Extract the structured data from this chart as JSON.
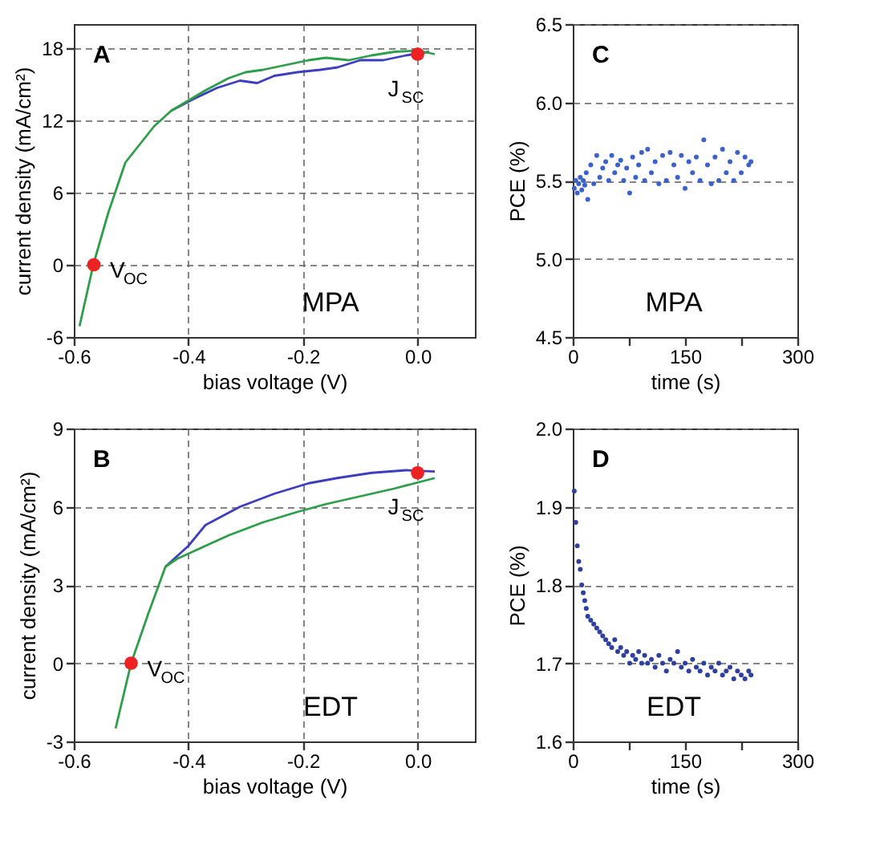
{
  "chart_data": [
    {
      "type": "line",
      "xlabel": "bias voltage (V)",
      "ylabel": "current density (mA/cm²)",
      "xlim": [
        -0.6,
        0.1
      ],
      "ylim": [
        -6,
        20
      ],
      "xticks": [
        -0.6,
        -0.4,
        -0.2,
        {
          "value": 0,
          "label": "0.0"
        }
      ],
      "yticks": [
        -6,
        0,
        6,
        12,
        18
      ],
      "grid": true,
      "series": [
        {
          "color": "#3d3dbf",
          "x": [
            -0.43,
            -0.39,
            -0.35,
            -0.31,
            -0.28,
            -0.25,
            -0.21,
            -0.17,
            -0.14,
            -0.1,
            -0.06,
            -0.02,
            0.02
          ],
          "values": [
            12.8,
            13.8,
            14.7,
            15.3,
            15.1,
            15.7,
            16,
            16.2,
            16.4,
            17,
            17,
            17.4,
            17.7
          ]
        },
        {
          "color": "#2e9e4a",
          "x": [
            -0.59,
            -0.566,
            -0.54,
            -0.51,
            -0.46,
            -0.43,
            -0.37,
            -0.33,
            -0.3,
            -0.27,
            -0.23,
            -0.19,
            -0.16,
            -0.12,
            -0.08,
            -0.04,
            0.0,
            0.03
          ],
          "values": [
            -5.1,
            0,
            4.3,
            8.5,
            11.5,
            12.8,
            14.5,
            15.5,
            16,
            16.2,
            16.6,
            17,
            17.2,
            17,
            17.4,
            17.7,
            17.8,
            17.5
          ]
        },
        {
          "type": "scatter",
          "color": "#ee2222",
          "marker": "circle",
          "x": [
            -0.565,
            0
          ],
          "values": [
            0,
            17.5
          ]
        }
      ],
      "annotations": [
        "A",
        "MPA",
        {
          "text": "V$_{OC}$",
          "x": -0.565,
          "y": 0
        },
        {
          "text": "J$_{SC}$",
          "x": 0,
          "y": 17.5
        }
      ]
    },
    {
      "type": "scatter",
      "xlabel": "time (s)",
      "ylabel": "PCE (%)",
      "xlim": [
        0,
        300
      ],
      "ylim": [
        4.5,
        6.5
      ],
      "xticks": [
        0,
        {
          "value": 75,
          "label": null
        },
        150,
        {
          "value": 225,
          "label": null
        },
        300
      ],
      "yticks": [
        4.5,
        {
          "value": 5,
          "label": "5.0"
        },
        5.5,
        {
          "value": 6,
          "label": "6.0"
        },
        6.5
      ],
      "grid": "y",
      "marker": "circle",
      "series": [
        {
          "color": "#3b62c8",
          "x": [
            2,
            4,
            6,
            8,
            10,
            12,
            14,
            16,
            18,
            20,
            24,
            28,
            32,
            36,
            40,
            44,
            48,
            52,
            56,
            60,
            64,
            68,
            72,
            76,
            80,
            84,
            88,
            92,
            96,
            100,
            105,
            110,
            115,
            120,
            125,
            130,
            135,
            140,
            145,
            150,
            155,
            160,
            165,
            170,
            175,
            180,
            185,
            190,
            195,
            200,
            205,
            210,
            215,
            220,
            225,
            230,
            235,
            238
          ],
          "values": [
            5.45,
            5.5,
            5.42,
            5.48,
            5.52,
            5.44,
            5.5,
            5.47,
            5.55,
            5.38,
            5.6,
            5.48,
            5.66,
            5.52,
            5.58,
            5.62,
            5.5,
            5.66,
            5.55,
            5.6,
            5.63,
            5.5,
            5.58,
            5.42,
            5.65,
            5.52,
            5.6,
            5.68,
            5.5,
            5.7,
            5.55,
            5.62,
            5.48,
            5.66,
            5.5,
            5.68,
            5.6,
            5.52,
            5.66,
            5.45,
            5.62,
            5.55,
            5.65,
            5.5,
            5.76,
            5.6,
            5.48,
            5.65,
            5.5,
            5.7,
            5.55,
            5.62,
            5.5,
            5.68,
            5.55,
            5.65,
            5.6,
            5.62
          ]
        }
      ],
      "annotations": [
        "C",
        "MPA"
      ]
    },
    {
      "type": "line",
      "xlabel": "bias voltage (V)",
      "ylabel": "current density (mA/cm²)",
      "xlim": [
        -0.6,
        0.1
      ],
      "ylim": [
        -3,
        9
      ],
      "xticks": [
        -0.6,
        -0.4,
        -0.2,
        {
          "value": 0,
          "label": "0.0"
        }
      ],
      "yticks": [
        -3,
        0,
        3,
        6,
        9
      ],
      "grid": true,
      "series": [
        {
          "color": "#3d3dbf",
          "x": [
            -0.44,
            -0.4,
            -0.37,
            -0.31,
            -0.25,
            -0.19,
            -0.14,
            -0.08,
            -0.02,
            0.03
          ],
          "values": [
            3.7,
            4.5,
            5.3,
            6,
            6.5,
            6.9,
            7.1,
            7.3,
            7.4,
            7.35
          ]
        },
        {
          "color": "#2e9e4a",
          "x": [
            -0.527,
            -0.5,
            -0.47,
            -0.44,
            -0.42,
            -0.39,
            -0.33,
            -0.27,
            -0.21,
            -0.16,
            -0.1,
            -0.04,
            0.03
          ],
          "values": [
            -2.5,
            0,
            1.9,
            3.7,
            4.0,
            4.3,
            4.9,
            5.4,
            5.8,
            6.1,
            6.4,
            6.7,
            7.1
          ]
        },
        {
          "type": "scatter",
          "color": "#ee2222",
          "marker": "circle",
          "x": [
            -0.5,
            0
          ],
          "values": [
            0,
            7.3
          ]
        }
      ],
      "annotations": [
        "B",
        "EDT",
        {
          "text": "V$_{OC}$",
          "x": -0.5,
          "y": 0
        },
        {
          "text": "J$_{SC}$",
          "x": 0,
          "y": 7.3
        }
      ]
    },
    {
      "type": "scatter",
      "xlabel": "time (s)",
      "ylabel": "PCE (%)",
      "xlim": [
        0,
        300
      ],
      "ylim": [
        1.6,
        2.0
      ],
      "xticks": [
        0,
        {
          "value": 75,
          "label": null
        },
        150,
        {
          "value": 225,
          "label": null
        },
        300
      ],
      "yticks": [
        1.6,
        1.7,
        1.8,
        1.9,
        {
          "value": 2,
          "label": "2.0"
        }
      ],
      "grid": "y",
      "marker": "circle",
      "series": [
        {
          "color": "#2f3f9e",
          "x": [
            2,
            4,
            6,
            8,
            10,
            12,
            14,
            16,
            18,
            20,
            24,
            28,
            32,
            36,
            40,
            44,
            48,
            52,
            56,
            60,
            64,
            68,
            72,
            76,
            80,
            84,
            88,
            92,
            96,
            100,
            105,
            110,
            115,
            120,
            125,
            130,
            135,
            140,
            145,
            150,
            155,
            160,
            165,
            170,
            175,
            180,
            185,
            190,
            195,
            200,
            205,
            210,
            215,
            220,
            225,
            230,
            235,
            238
          ],
          "values": [
            1.92,
            1.88,
            1.85,
            1.83,
            1.82,
            1.8,
            1.79,
            1.78,
            1.77,
            1.76,
            1.755,
            1.75,
            1.745,
            1.74,
            1.735,
            1.73,
            1.725,
            1.72,
            1.73,
            1.715,
            1.72,
            1.71,
            1.715,
            1.7,
            1.71,
            1.705,
            1.715,
            1.7,
            1.71,
            1.7,
            1.705,
            1.695,
            1.71,
            1.7,
            1.69,
            1.705,
            1.7,
            1.715,
            1.695,
            1.7,
            1.69,
            1.705,
            1.695,
            1.69,
            1.7,
            1.685,
            1.695,
            1.69,
            1.7,
            1.685,
            1.69,
            1.695,
            1.68,
            1.69,
            1.685,
            1.68,
            1.69,
            1.685
          ]
        }
      ],
      "annotations": [
        "D",
        "EDT"
      ]
    }
  ]
}
